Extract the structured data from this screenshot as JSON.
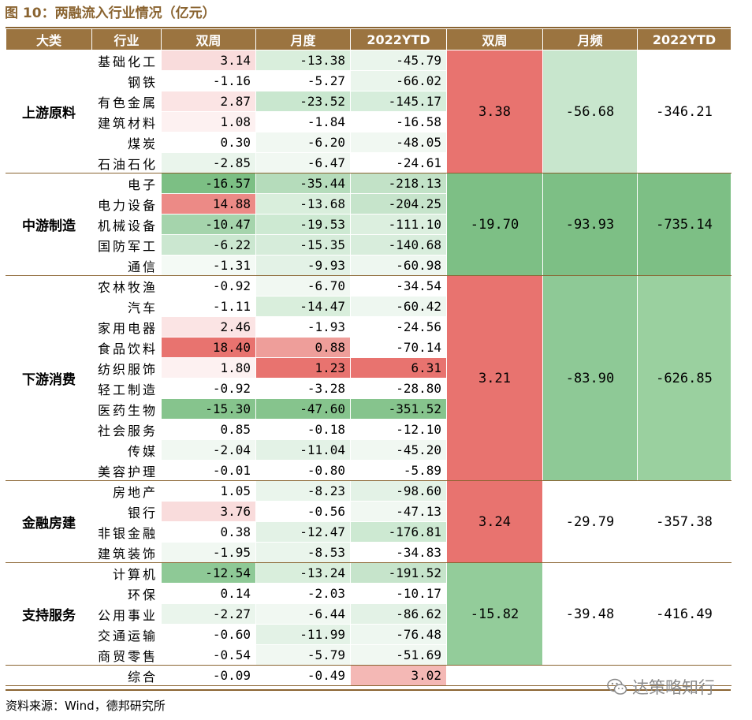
{
  "title": "图 10：两融流入行业情况（亿元）",
  "headers": [
    "大类",
    "行业",
    "双周",
    "月度",
    "2022YTD",
    "双周",
    "月频",
    "2022YTD"
  ],
  "groups": [
    {
      "name": "上游原料",
      "agg": [
        "3.38",
        "-56.68",
        "-346.21"
      ],
      "agg_colors": [
        "#e8736f",
        "#c8e6cd",
        "#ffffff"
      ],
      "rows": [
        {
          "industry": "基础化工",
          "values": [
            "3.14",
            "-13.38",
            "-45.79"
          ],
          "colors": [
            "#f9dcdc",
            "#d9eedc",
            "#eaf5ec"
          ]
        },
        {
          "industry": "钢铁",
          "values": [
            "-1.16",
            "-5.27",
            "-66.02"
          ],
          "colors": [
            "#ffffff",
            "#ffffff",
            "#eaf5ec"
          ]
        },
        {
          "industry": "有色金属",
          "values": [
            "2.87",
            "-23.52",
            "-145.17"
          ],
          "colors": [
            "#fbe4e4",
            "#c9e7cf",
            "#d6eddb"
          ]
        },
        {
          "industry": "建筑材料",
          "values": [
            "1.08",
            "-1.84",
            "-16.58"
          ],
          "colors": [
            "#fdf1f1",
            "#ffffff",
            "#ffffff"
          ]
        },
        {
          "industry": "煤炭",
          "values": [
            "0.30",
            "-6.20",
            "-48.05"
          ],
          "colors": [
            "#ffffff",
            "#f1f8f2",
            "#f1f8f2"
          ]
        },
        {
          "industry": "石油石化",
          "values": [
            "-2.85",
            "-6.47",
            "-24.61"
          ],
          "colors": [
            "#eaf5ec",
            "#f1f8f2",
            "#ffffff"
          ]
        }
      ]
    },
    {
      "name": "中游制造",
      "agg": [
        "-19.70",
        "-93.93",
        "-735.14"
      ],
      "agg_colors": [
        "#7dbf85",
        "#7dbf85",
        "#7dbf85"
      ],
      "rows": [
        {
          "industry": "电子",
          "values": [
            "-16.57",
            "-35.44",
            "-218.13"
          ],
          "colors": [
            "#7cbf84",
            "#b5dcbb",
            "#c2e2c7"
          ]
        },
        {
          "industry": "电力设备",
          "values": [
            "14.88",
            "-13.68",
            "-204.25"
          ],
          "colors": [
            "#ec8a86",
            "#d9eedc",
            "#c6e4cb"
          ]
        },
        {
          "industry": "机械设备",
          "values": [
            "-10.47",
            "-19.53",
            "-111.10"
          ],
          "colors": [
            "#a5d4ac",
            "#cde9d2",
            "#dcefdf"
          ]
        },
        {
          "industry": "国防军工",
          "values": [
            "-6.22",
            "-15.35",
            "-140.68"
          ],
          "colors": [
            "#cbe7d0",
            "#d6ecda",
            "#d8eddc"
          ]
        },
        {
          "industry": "通信",
          "values": [
            "-1.31",
            "-9.93",
            "-60.98"
          ],
          "colors": [
            "#f4faf5",
            "#e3f2e6",
            "#eef7f0"
          ]
        }
      ]
    },
    {
      "name": "下游消费",
      "agg": [
        "3.21",
        "-83.90",
        "-626.85"
      ],
      "agg_colors": [
        "#e8736f",
        "#8ec996",
        "#9ad09f"
      ],
      "rows": [
        {
          "industry": "农林牧渔",
          "values": [
            "-0.92",
            "-6.70",
            "-34.54"
          ],
          "colors": [
            "#ffffff",
            "#f1f8f2",
            "#ffffff"
          ]
        },
        {
          "industry": "汽车",
          "values": [
            "-1.11",
            "-14.47",
            "-60.42"
          ],
          "colors": [
            "#ffffff",
            "#d9eedc",
            "#eef7f0"
          ]
        },
        {
          "industry": "家用电器",
          "values": [
            "2.46",
            "-1.93",
            "-24.56"
          ],
          "colors": [
            "#fbe4e4",
            "#ffffff",
            "#ffffff"
          ]
        },
        {
          "industry": "食品饮料",
          "values": [
            "18.40",
            "0.88",
            "-70.14"
          ],
          "colors": [
            "#e8736f",
            "#ee9e9a",
            "#ffffff"
          ]
        },
        {
          "industry": "纺织服饰",
          "values": [
            "1.80",
            "1.23",
            "6.31"
          ],
          "colors": [
            "#fdf1f1",
            "#e8736f",
            "#e8736f"
          ]
        },
        {
          "industry": "轻工制造",
          "values": [
            "-0.92",
            "-3.28",
            "-28.80"
          ],
          "colors": [
            "#ffffff",
            "#ffffff",
            "#ffffff"
          ]
        },
        {
          "industry": "医药生物",
          "values": [
            "-15.30",
            "-47.60",
            "-351.52"
          ],
          "colors": [
            "#86c48d",
            "#86c48d",
            "#86c48d"
          ]
        },
        {
          "industry": "社会服务",
          "values": [
            "0.85",
            "-0.18",
            "-12.10"
          ],
          "colors": [
            "#ffffff",
            "#ffffff",
            "#ffffff"
          ]
        },
        {
          "industry": "传媒",
          "values": [
            "-2.04",
            "-11.04",
            "-45.20"
          ],
          "colors": [
            "#f1f8f2",
            "#e3f2e6",
            "#f1f8f2"
          ]
        },
        {
          "industry": "美容护理",
          "values": [
            "-0.01",
            "-0.80",
            "-5.89"
          ],
          "colors": [
            "#ffffff",
            "#ffffff",
            "#ffffff"
          ]
        }
      ]
    },
    {
      "name": "金融房建",
      "agg": [
        "3.24",
        "-29.79",
        "-357.38"
      ],
      "agg_colors": [
        "#e8736f",
        "#ffffff",
        "#ffffff"
      ],
      "rows": [
        {
          "industry": "房地产",
          "values": [
            "1.05",
            "-8.23",
            "-98.60"
          ],
          "colors": [
            "#ffffff",
            "#eaf5ec",
            "#e3f2e6"
          ]
        },
        {
          "industry": "银行",
          "values": [
            "3.76",
            "-0.56",
            "-47.13"
          ],
          "colors": [
            "#f9dcdc",
            "#ffffff",
            "#f1f8f2"
          ]
        },
        {
          "industry": "非银金融",
          "values": [
            "0.38",
            "-12.47",
            "-176.81"
          ],
          "colors": [
            "#ffffff",
            "#e3f2e6",
            "#cde9d2"
          ]
        },
        {
          "industry": "建筑装饰",
          "values": [
            "-1.95",
            "-8.53",
            "-34.83"
          ],
          "colors": [
            "#f1f8f2",
            "#eaf5ec",
            "#ffffff"
          ]
        }
      ]
    },
    {
      "name": "支持服务",
      "agg": [
        "-15.82",
        "-39.48",
        "-416.49"
      ],
      "agg_colors": [
        "#93cc9a",
        "#ffffff",
        "#ffffff"
      ],
      "rows": [
        {
          "industry": "计算机",
          "values": [
            "-12.54",
            "-13.24",
            "-191.52"
          ],
          "colors": [
            "#8ec996",
            "#d9eedc",
            "#c6e4cb"
          ]
        },
        {
          "industry": "环保",
          "values": [
            "0.14",
            "-2.03",
            "-10.17"
          ],
          "colors": [
            "#ffffff",
            "#ffffff",
            "#ffffff"
          ]
        },
        {
          "industry": "公用事业",
          "values": [
            "-2.27",
            "-6.44",
            "-86.62"
          ],
          "colors": [
            "#eaf5ec",
            "#f1f8f2",
            "#e3f2e6"
          ]
        },
        {
          "industry": "交通运输",
          "values": [
            "-0.60",
            "-11.99",
            "-76.48"
          ],
          "colors": [
            "#ffffff",
            "#e3f2e6",
            "#eef7f0"
          ]
        },
        {
          "industry": "商贸零售",
          "values": [
            "-0.54",
            "-5.79",
            "-51.69"
          ],
          "colors": [
            "#ffffff",
            "#f1f8f2",
            "#f1f8f2"
          ]
        }
      ]
    },
    {
      "name": "",
      "agg": [
        "",
        "",
        ""
      ],
      "agg_colors": [
        "#ffffff",
        "#ffffff",
        "#ffffff"
      ],
      "rows": [
        {
          "industry": "综合",
          "values": [
            "-0.09",
            "-0.49",
            "3.02"
          ],
          "colors": [
            "#ffffff",
            "#ffffff",
            "#f4b8b5"
          ]
        }
      ]
    }
  ],
  "source": "资料来源：Wind，德邦研究所",
  "watermark": "达策略知行"
}
